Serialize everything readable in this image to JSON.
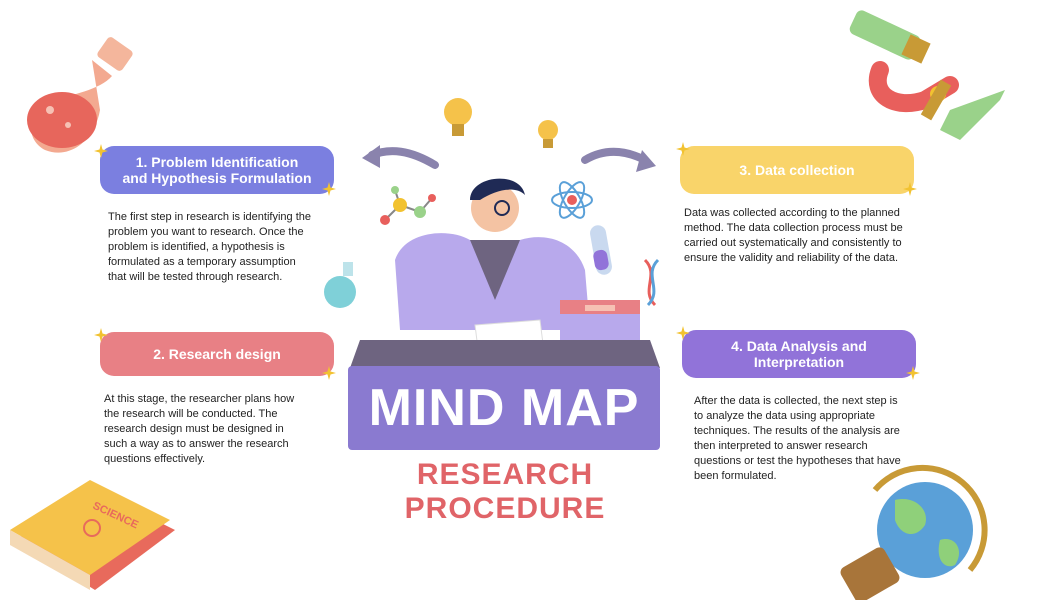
{
  "title": "MIND MAP",
  "subtitle": "RESEARCH PROCEDURE",
  "steps": [
    {
      "heading_line1": "1. Problem Identification",
      "heading_line2": "and Hypothesis Formulation",
      "color": "#7b7fe0",
      "description": "The first step in research is identifying the problem you want to research. Once the problem is identified, a hypothesis is formulated as a temporary assumption that will be tested through research."
    },
    {
      "heading_line1": "2. Research design",
      "heading_line2": "",
      "color": "#e88085",
      "description": "At this stage, the researcher plans how the research will be conducted. The research design must be designed in such a way as to answer the research questions effectively."
    },
    {
      "heading_line1": "3. Data collection",
      "heading_line2": "",
      "color": "#f9d46a",
      "description": "Data was collected according to the planned method. The data collection process must be carried out systematically and consistently to ensure the validity and reliability of the data."
    },
    {
      "heading_line1": "4. Data Analysis and",
      "heading_line2": "Interpretation",
      "color": "#9173d9",
      "description": "After the data is collected, the next step is to analyze the data using appropriate techniques. The results of the analysis are then interpreted to answer research questions or test the hypotheses that have been formulated."
    }
  ],
  "book_label": "SCIENCE",
  "colors": {
    "title_box": "#8a7ad0",
    "subtitle": "#e06468",
    "arrow": "#8a83ad",
    "sparkle": "#f2c230"
  }
}
